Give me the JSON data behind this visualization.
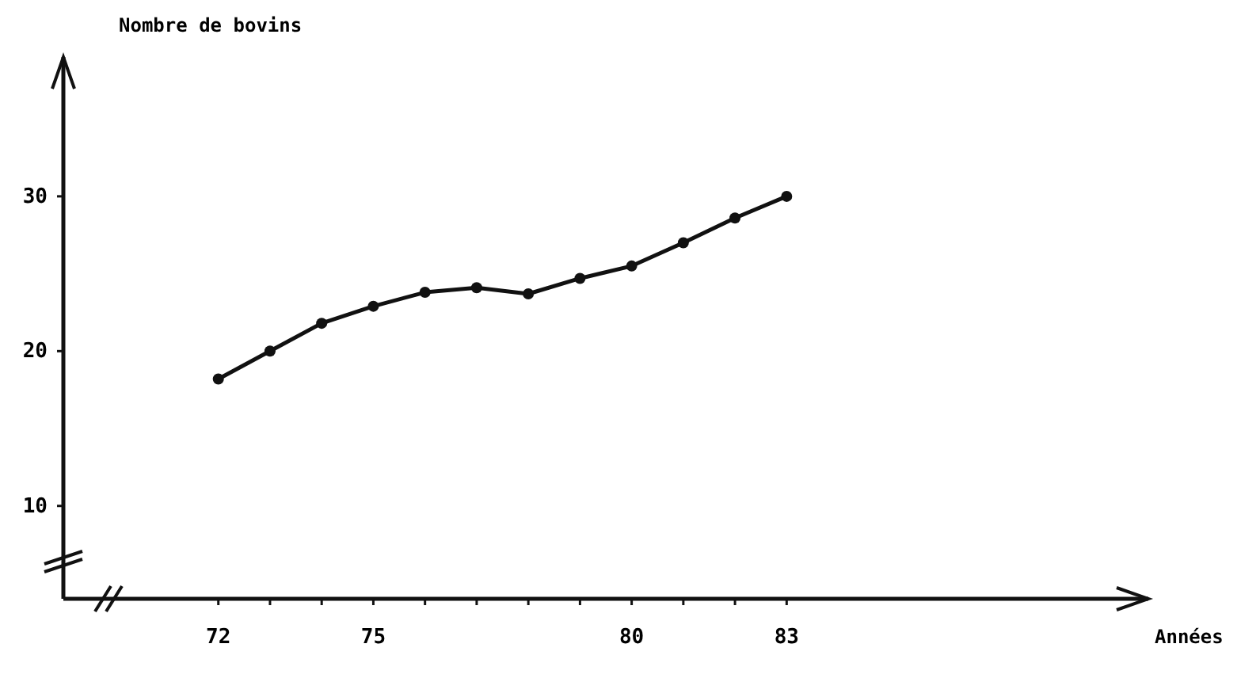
{
  "chart_data": {
    "type": "line",
    "xlabel": "Années",
    "ylabel": "Nombre de bovins",
    "x": [
      72,
      73,
      74,
      75,
      76,
      77,
      78,
      79,
      80,
      81,
      82,
      83
    ],
    "values": [
      18.2,
      20,
      21.8,
      22.9,
      23.8,
      24.1,
      23.7,
      24.7,
      25.5,
      27,
      28.6,
      30
    ],
    "color": "#111111",
    "marker": "circle",
    "line_style": "solid",
    "grid": false,
    "xlim": [
      69,
      90
    ],
    "xticks": [
      72,
      {
        "value": 73,
        "label": null
      },
      {
        "value": 74,
        "label": null
      },
      75,
      {
        "value": 76,
        "label": null
      },
      {
        "value": 77,
        "label": null
      },
      {
        "value": 78,
        "label": null
      },
      {
        "value": 79,
        "label": null
      },
      80,
      {
        "value": 81,
        "label": null
      },
      {
        "value": 82,
        "label": null
      },
      83
    ],
    "ylim": [
      4,
      39
    ],
    "yticks": [
      10,
      20,
      30
    ]
  }
}
